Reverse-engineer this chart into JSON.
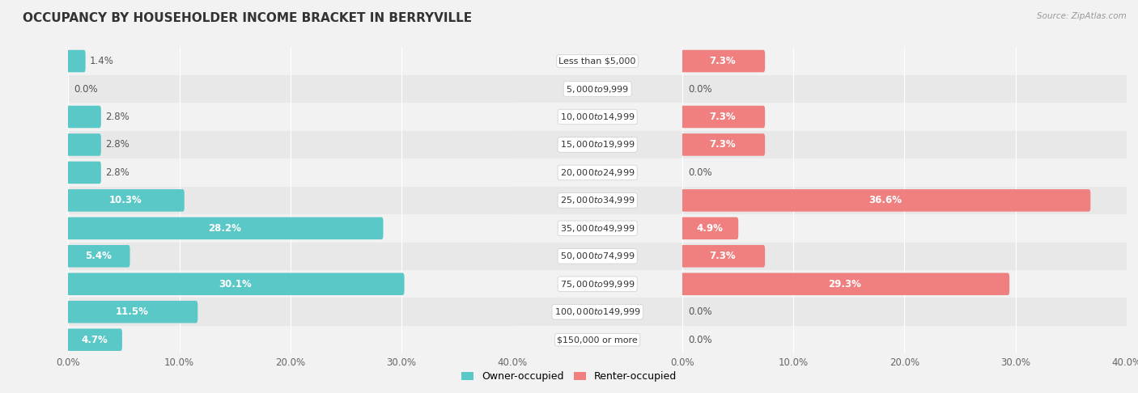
{
  "title": "OCCUPANCY BY HOUSEHOLDER INCOME BRACKET IN BERRYVILLE",
  "source": "Source: ZipAtlas.com",
  "categories": [
    "Less than $5,000",
    "$5,000 to $9,999",
    "$10,000 to $14,999",
    "$15,000 to $19,999",
    "$20,000 to $24,999",
    "$25,000 to $34,999",
    "$35,000 to $49,999",
    "$50,000 to $74,999",
    "$75,000 to $99,999",
    "$100,000 to $149,999",
    "$150,000 or more"
  ],
  "owner_values": [
    1.4,
    0.0,
    2.8,
    2.8,
    2.8,
    10.3,
    28.2,
    5.4,
    30.1,
    11.5,
    4.7
  ],
  "renter_values": [
    7.3,
    0.0,
    7.3,
    7.3,
    0.0,
    36.6,
    4.9,
    7.3,
    29.3,
    0.0,
    0.0
  ],
  "owner_color": "#5bc8c8",
  "renter_color": "#f08080",
  "row_colors": [
    "#f2f2f2",
    "#e8e8e8"
  ],
  "axis_max": 40.0,
  "title_fontsize": 11,
  "label_fontsize": 8.5,
  "tick_fontsize": 8.5,
  "legend_fontsize": 9,
  "bar_height": 0.5,
  "inside_label_threshold": 4.0
}
